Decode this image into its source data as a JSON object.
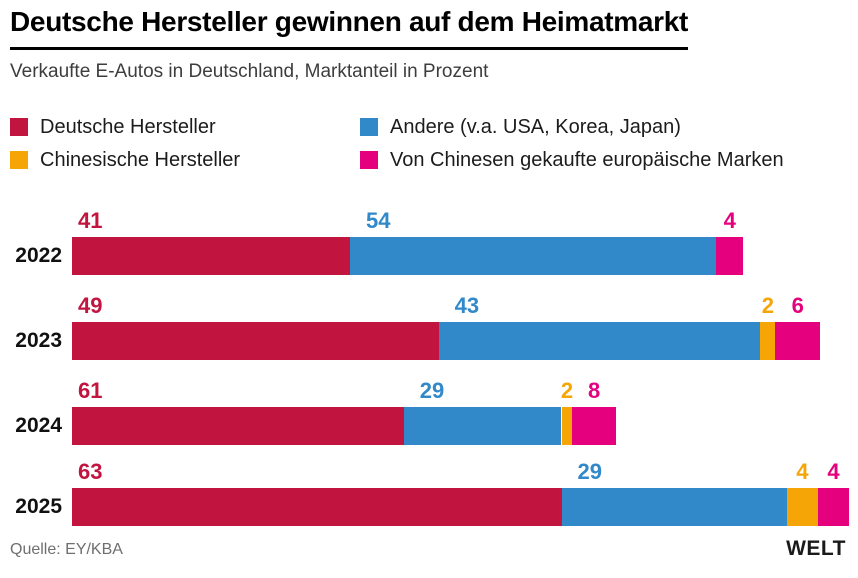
{
  "header": {
    "title": "Deutsche Hersteller gewinnen auf dem Heimatmarkt",
    "subtitle": "Verkaufte E-Autos in Deutschland, Marktanteil in Prozent"
  },
  "legend": {
    "columns": [
      [
        {
          "label": "Deutsche Hersteller",
          "color": "#c1153f"
        },
        {
          "label": "Chinesische Hersteller",
          "color": "#f5a506"
        }
      ],
      [
        {
          "label": "Andere (v.a. USA, Korea, Japan)",
          "color": "#3189ca"
        },
        {
          "label": "Von Chinesen gekaufte europäische Marken",
          "color": "#e5007e"
        }
      ]
    ]
  },
  "chart_data": {
    "type": "bar",
    "stacked": true,
    "orientation": "horizontal",
    "value_unit": "Marktanteil in Prozent",
    "categories": [
      "2022",
      "2023",
      "2024",
      "2025"
    ],
    "series": [
      {
        "name": "Deutsche Hersteller",
        "color": "#c1153f",
        "values": [
          41,
          49,
          61,
          63
        ]
      },
      {
        "name": "Andere (v.a. USA, Korea, Japan)",
        "color": "#3189ca",
        "values": [
          54,
          43,
          29,
          29
        ]
      },
      {
        "name": "Chinesische Hersteller",
        "color": "#f5a506",
        "values": [
          0,
          2,
          2,
          4
        ]
      },
      {
        "name": "Von Chinesen gekaufte europäische Marken",
        "color": "#e5007e",
        "values": [
          4,
          6,
          8,
          4
        ]
      }
    ],
    "row_total_bar_length_relative": [
      0.864,
      0.963,
      0.7,
      1.0
    ],
    "data_labels": true,
    "axes_hidden": true,
    "legend_position": "top",
    "grid": false
  },
  "footer": {
    "source": "Quelle: EY/KBA",
    "brand": "WELT"
  }
}
